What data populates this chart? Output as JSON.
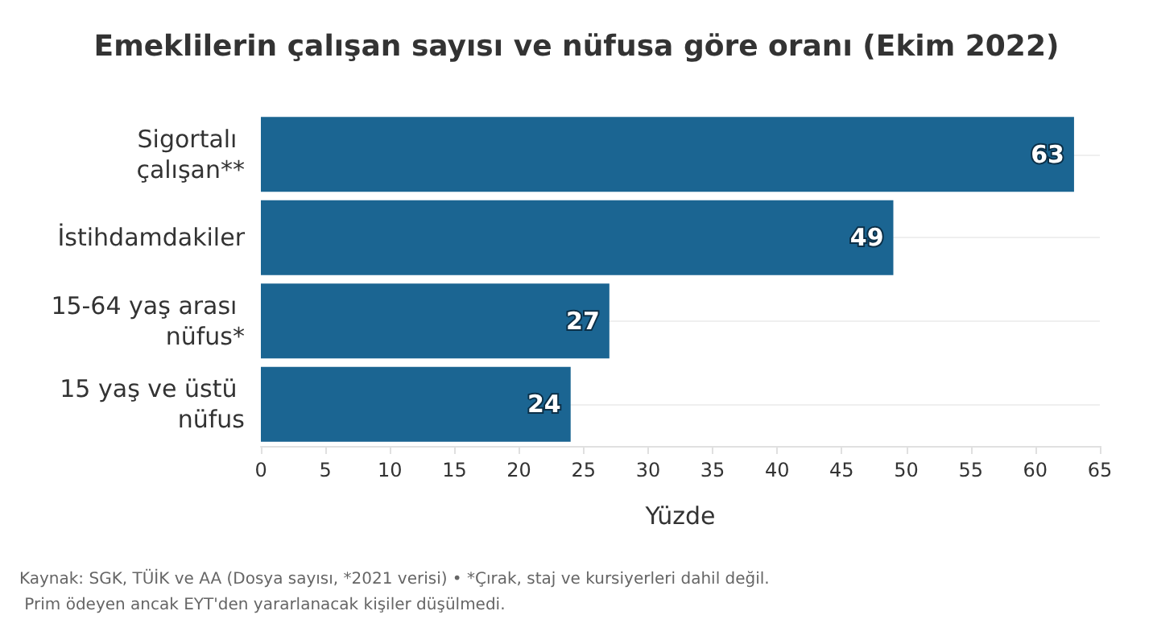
{
  "chart_data": {
    "type": "bar",
    "orientation": "horizontal",
    "title": "Emeklilerin çalışan sayısı ve nüfusa göre oranı (Ekim 2022)",
    "categories": [
      "Sigortalı çalışan**",
      "İstihdamdakiler",
      "15-64 yaş arası nüfus*",
      "15 yaş ve üstü nüfus"
    ],
    "values": [
      63,
      49,
      27,
      24
    ],
    "color": "#1b6592",
    "data_labels": true,
    "xlabel": "Yüzde",
    "xlim": [
      0,
      65
    ],
    "xticks": [
      0,
      5,
      10,
      15,
      20,
      25,
      30,
      35,
      40,
      45,
      50,
      55,
      60,
      65
    ],
    "grid": "y",
    "annotations": [
      "Kaynak: SGK, TÜİK ve AA (Dosya sayısı, *2021 verisi) • *Çırak, staj ve kursiyerleri dahil değil. Prim ödeyen ancak EYT'den yararlanacak kişiler düşülmedi."
    ]
  }
}
